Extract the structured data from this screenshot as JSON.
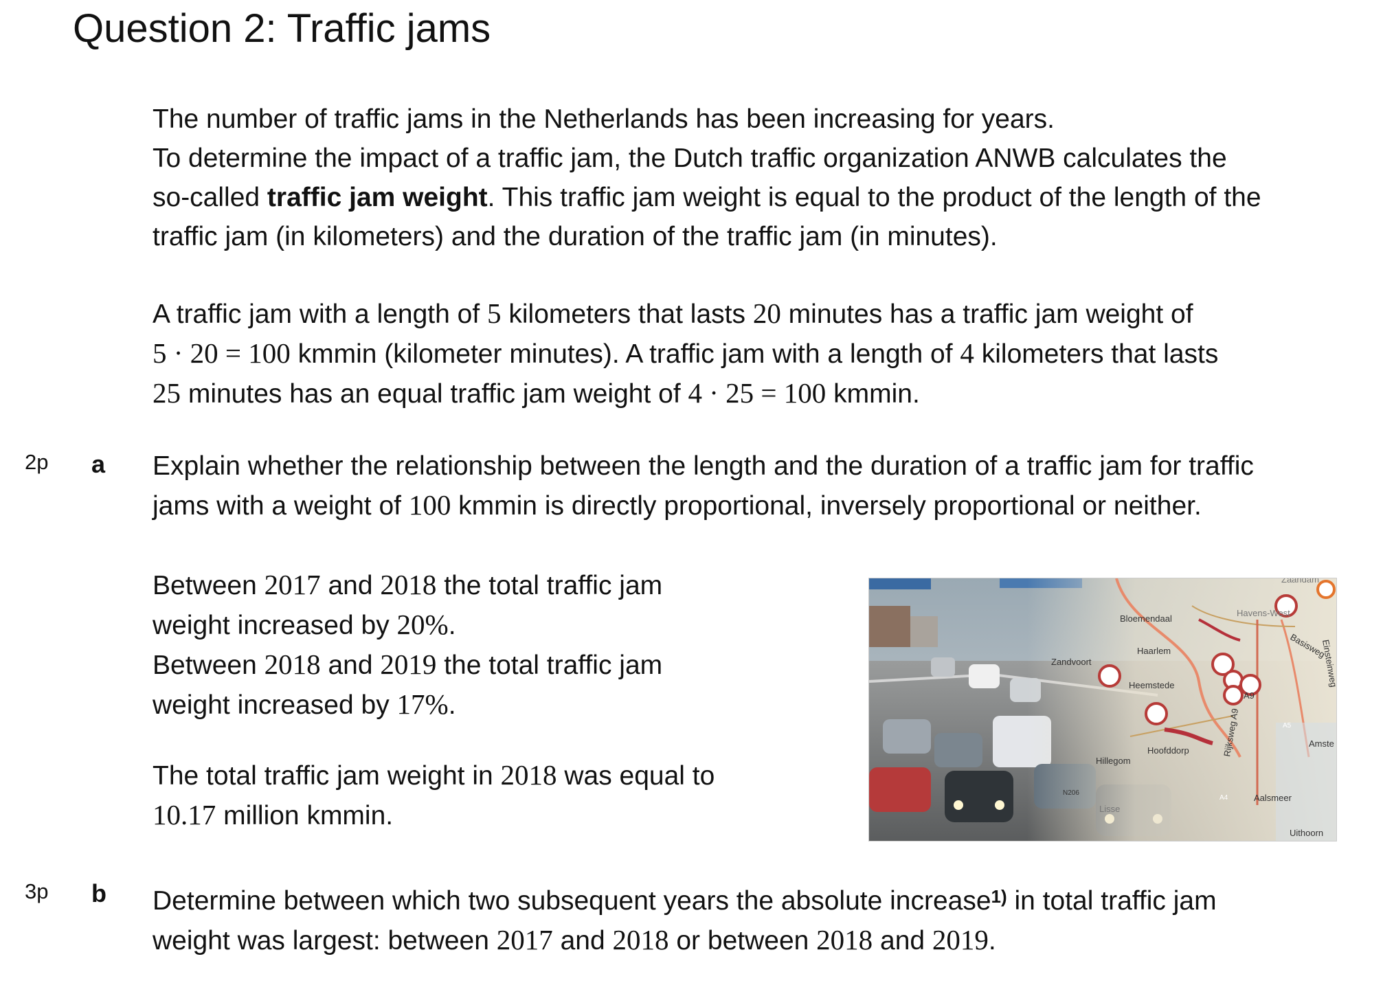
{
  "title": "Question 2: Traffic jams",
  "intro": {
    "line1": "The number of traffic jams in the Netherlands has been increasing for years.",
    "line2": "To determine the impact of a traffic jam, the Dutch traffic organization ANWB calculates the",
    "line3_pre": "so-called ",
    "line3_bold": "traffic jam weight",
    "line3_post": ". This traffic jam weight is equal to the product of the length of the",
    "line4": "traffic jam (in kilometers) and the duration of the traffic jam (in minutes)."
  },
  "example": {
    "l1_a": "A traffic jam with a length of ",
    "l1_n1": "5",
    "l1_b": " kilometers that lasts ",
    "l1_n2": "20",
    "l1_c": " minutes has a traffic jam weight of",
    "l2_n": "5 · 20 = 100",
    "l2_a": " kmmin (kilometer minutes). A traffic jam with a length of ",
    "l2_n2": "4",
    "l2_b": " kilometers that lasts",
    "l3_n": "25",
    "l3_a": " minutes has an equal traffic jam weight of ",
    "l3_n2": "4 · 25 = 100",
    "l3_b": " kmmin."
  },
  "question_a": {
    "points": "2p",
    "letter": "a",
    "l1": "Explain whether the relationship between the length and the duration of a traffic jam for traffic",
    "l2_a": "jams with a weight of ",
    "l2_n": "100",
    "l2_b": " kmmin is directly proportional, inversely proportional or neither."
  },
  "growth": {
    "l1_a": "Between ",
    "l1_n1": "2017",
    "l1_b": " and ",
    "l1_n2": "2018",
    "l1_c": " the total traffic jam",
    "l2_a": "weight increased by ",
    "l2_n": "20%",
    "l2_b": ".",
    "l3_a": "Between ",
    "l3_n1": "2018",
    "l3_b": " and ",
    "l3_n2": "2019",
    "l3_c": " the total traffic jam",
    "l4_a": "weight increased by ",
    "l4_n": "17%",
    "l4_b": "."
  },
  "total": {
    "l1_a": "The total traffic jam weight in ",
    "l1_n": "2018",
    "l1_b": " was equal to",
    "l2_n": "10.17",
    "l2_b": " million kmmin."
  },
  "question_b": {
    "points": "3p",
    "letter": "b",
    "l1_a": "Determine between which two subsequent years the absolute increase",
    "l1_sup": "1)",
    "l1_b": " in total traffic jam",
    "l2_a": "weight was largest: between ",
    "l2_n1": "2017",
    "l2_b": " and ",
    "l2_n2": "2018",
    "l2_c": " or between ",
    "l2_n3": "2018",
    "l2_d": " and ",
    "l2_n4": "2019",
    "l2_e": "."
  },
  "photo": {
    "map_labels": {
      "bloemendaal": "Bloemendaal",
      "haarlem": "Haarlem",
      "zandvoort": "Zandvoort",
      "heemstede": "Heemstede",
      "havens_west": "Havens-West",
      "zaandam": "Zaandam",
      "basisweg": "Basisweg",
      "einsteinweg": "Einsteinweg",
      "hoofddorp": "Hoofddorp",
      "hillegom": "Hillegom",
      "rijksweg_a9": "Rijksweg A9",
      "a9": "A9",
      "a5": "A5",
      "a4": "A4",
      "aalsmeer": "Aalsmeer",
      "uithoorn": "Uithoorn",
      "amsterdam": "Amste",
      "n206": "N206",
      "lisse": "Lisse"
    }
  }
}
